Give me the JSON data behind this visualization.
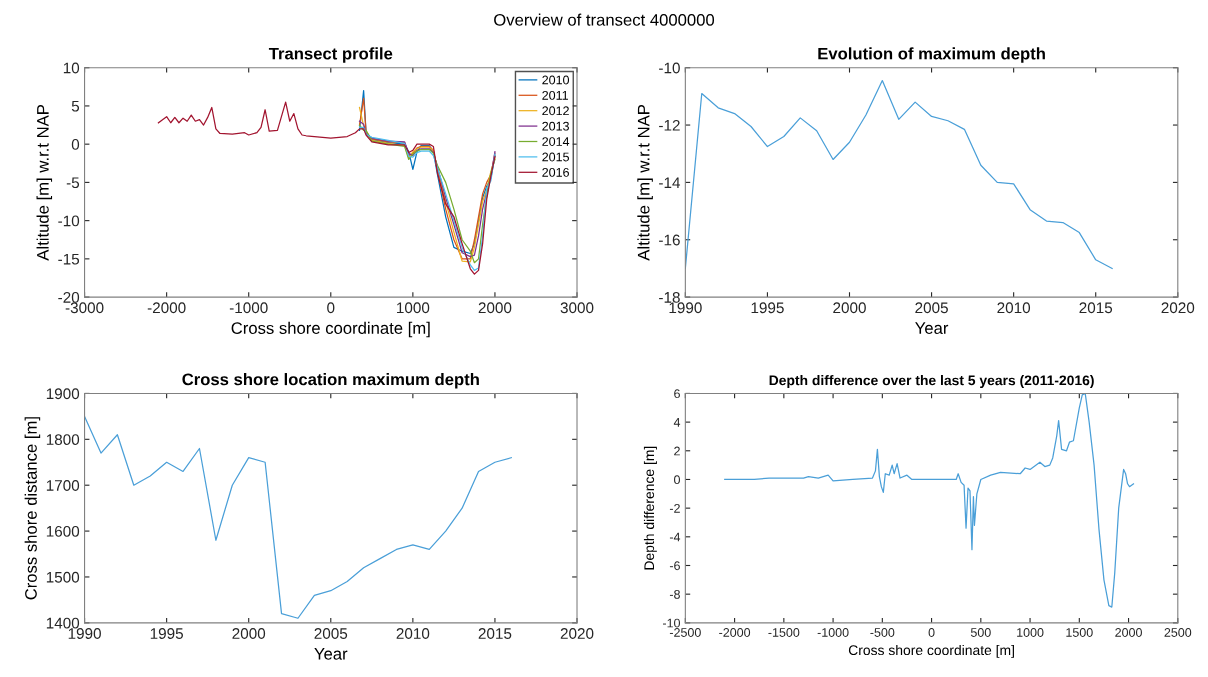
{
  "chart_data": [
    {
      "type": "line",
      "title": "Transect profile",
      "xlabel": "Cross shore coordinate [m]",
      "ylabel": "Altitude [m] w.r.t NAP",
      "annotations": [
        "Overview of transect 4000000"
      ],
      "xlim": [
        -3000,
        3000
      ],
      "xticks": [
        -3000,
        -2000,
        -1000,
        0,
        1000,
        2000,
        3000
      ],
      "ylim": [
        -20,
        10
      ],
      "yticks": [
        -20,
        -15,
        -10,
        -5,
        0,
        5,
        10
      ],
      "grid": false,
      "legend": "top right",
      "x": [
        -2100,
        -2050,
        -2000,
        -1950,
        -1900,
        -1850,
        -1800,
        -1750,
        -1700,
        -1650,
        -1600,
        -1550,
        -1500,
        -1450,
        -1400,
        -1350,
        -1200,
        -1050,
        -1000,
        -900,
        -850,
        -800,
        -750,
        -650,
        -550,
        -500,
        -450,
        -400,
        -350,
        -300,
        -200,
        0,
        200,
        300,
        350,
        400,
        430,
        500,
        700,
        900,
        950,
        1000,
        1050,
        1100,
        1200,
        1250,
        1300,
        1400,
        1500,
        1600,
        1700,
        1750,
        1800,
        1850,
        1900,
        1950,
        2000
      ],
      "series": [
        {
          "name": "2010",
          "color": "#0072bd",
          "values": [
            null,
            null,
            null,
            null,
            null,
            null,
            null,
            null,
            null,
            null,
            null,
            null,
            null,
            null,
            null,
            null,
            null,
            null,
            null,
            null,
            null,
            null,
            null,
            null,
            null,
            null,
            null,
            null,
            null,
            null,
            null,
            null,
            null,
            null,
            1.8,
            7.0,
            1.5,
            0.6,
            0.2,
            0.0,
            -1.0,
            -3.3,
            -1.0,
            -0.2,
            -0.2,
            -1.0,
            -4.0,
            -9.5,
            -13.5,
            -14.0,
            -14.3,
            -13.0,
            -10.0,
            -7.0,
            -5.5,
            -4.5,
            -1.5
          ]
        },
        {
          "name": "2011",
          "color": "#d95319",
          "values": [
            null,
            null,
            null,
            null,
            null,
            null,
            null,
            null,
            null,
            null,
            null,
            null,
            null,
            null,
            null,
            null,
            null,
            null,
            null,
            null,
            null,
            null,
            null,
            null,
            null,
            null,
            null,
            null,
            null,
            null,
            null,
            null,
            null,
            null,
            2.5,
            6.0,
            1.6,
            0.7,
            0.3,
            0.2,
            -1.5,
            -1.2,
            -0.5,
            -0.3,
            -0.3,
            -0.8,
            -3.5,
            -8.5,
            -12.5,
            -15.0,
            -15.0,
            -12.5,
            -9.5,
            -6.5,
            -5.0,
            -4.0,
            -1.2
          ]
        },
        {
          "name": "2012",
          "color": "#edb120",
          "values": [
            null,
            null,
            null,
            null,
            null,
            null,
            null,
            null,
            null,
            null,
            null,
            null,
            null,
            null,
            null,
            null,
            null,
            null,
            null,
            null,
            null,
            null,
            null,
            null,
            null,
            null,
            null,
            null,
            null,
            null,
            null,
            null,
            null,
            null,
            4.8,
            2.4,
            1.7,
            0.5,
            0.1,
            -0.2,
            -1.8,
            -1.0,
            -0.6,
            -0.4,
            -0.4,
            -0.9,
            -3.2,
            -7.5,
            -11.5,
            -15.3,
            -15.4,
            -13.5,
            -10.5,
            -7.5,
            -6.0,
            -3.6,
            -1.8
          ]
        },
        {
          "name": "2013",
          "color": "#7e2f8e",
          "values": [
            null,
            null,
            null,
            null,
            null,
            null,
            null,
            null,
            null,
            null,
            null,
            null,
            null,
            null,
            null,
            null,
            null,
            null,
            null,
            null,
            null,
            null,
            null,
            null,
            null,
            null,
            null,
            null,
            null,
            null,
            null,
            null,
            null,
            null,
            3.0,
            2.6,
            1.4,
            0.8,
            0.4,
            0.3,
            -1.2,
            -1.5,
            -0.8,
            -0.6,
            -0.6,
            -1.1,
            -3.0,
            -7.0,
            -10.5,
            -14.2,
            -14.7,
            -14.5,
            -12.0,
            -8.5,
            -6.3,
            -4.3,
            -1.0
          ]
        },
        {
          "name": "2014",
          "color": "#77ac30",
          "values": [
            null,
            null,
            null,
            null,
            null,
            null,
            null,
            null,
            null,
            null,
            null,
            null,
            null,
            null,
            null,
            null,
            null,
            null,
            null,
            null,
            null,
            null,
            null,
            null,
            null,
            null,
            null,
            null,
            null,
            null,
            null,
            null,
            null,
            null,
            2.5,
            1.8,
            1.8,
            0.4,
            0.0,
            -0.3,
            -2.0,
            -1.3,
            -0.9,
            -0.7,
            -0.7,
            -1.2,
            -2.8,
            -5.0,
            -8.5,
            -12.5,
            -14.0,
            -15.5,
            -15.0,
            -10.5,
            -6.8,
            -3.8,
            -2.0
          ]
        },
        {
          "name": "2015",
          "color": "#4dbeee",
          "values": [
            null,
            null,
            null,
            null,
            null,
            null,
            null,
            null,
            null,
            null,
            null,
            null,
            null,
            null,
            null,
            null,
            null,
            null,
            null,
            null,
            null,
            null,
            null,
            null,
            null,
            null,
            null,
            null,
            null,
            null,
            null,
            null,
            null,
            null,
            2.2,
            2.2,
            1.3,
            0.9,
            0.5,
            0.1,
            -1.6,
            -1.7,
            -1.1,
            -0.9,
            -0.9,
            -1.5,
            -3.1,
            -6.5,
            -10.0,
            -13.5,
            -15.8,
            -16.5,
            -16.2,
            -12.0,
            -5.8,
            -4.8,
            -1.3
          ]
        },
        {
          "name": "2016",
          "color": "#a2142f",
          "values": [
            2.8,
            3.2,
            3.6,
            2.8,
            3.5,
            2.8,
            3.4,
            3.0,
            3.8,
            3.0,
            3.2,
            2.5,
            3.5,
            4.8,
            2.0,
            1.4,
            1.3,
            1.5,
            1.2,
            1.5,
            2.2,
            4.5,
            1.7,
            1.8,
            5.5,
            3.0,
            4.0,
            2.0,
            1.2,
            1.1,
            1.0,
            0.8,
            1.0,
            1.5,
            2.0,
            2.0,
            1.2,
            0.3,
            -0.1,
            -0.1,
            -1.1,
            -0.8,
            0.0,
            0.0,
            0.0,
            -0.3,
            -3.8,
            -7.8,
            -9.5,
            -13.0,
            -16.3,
            -17.0,
            -16.5,
            -13.0,
            -7.2,
            -4.2,
            -1.6
          ]
        }
      ]
    },
    {
      "type": "line",
      "title": "Evolution of maximum depth",
      "xlabel": "Year",
      "ylabel": "Altitude [m] w.r.t NAP",
      "xlim": [
        1990,
        2020
      ],
      "xticks": [
        1990,
        1995,
        2000,
        2005,
        2010,
        2015,
        2020
      ],
      "ylim": [
        -18,
        -10
      ],
      "yticks": [
        -18,
        -16,
        -14,
        -12,
        -10
      ],
      "grid": false,
      "x": [
        1990,
        1991,
        1992,
        1993,
        1994,
        1995,
        1996,
        1997,
        1998,
        1999,
        2000,
        2001,
        2002,
        2003,
        2004,
        2005,
        2006,
        2007,
        2008,
        2009,
        2010,
        2011,
        2012,
        2013,
        2014,
        2015,
        2016
      ],
      "series": [
        {
          "color": "#4a9fd8",
          "values": [
            -17.0,
            -10.9,
            -11.4,
            -11.6,
            -12.05,
            -12.75,
            -12.4,
            -11.75,
            -12.2,
            -13.2,
            -12.6,
            -11.65,
            -10.45,
            -11.8,
            -11.2,
            -11.7,
            -11.85,
            -12.15,
            -13.4,
            -14.0,
            -14.05,
            -14.95,
            -15.35,
            -15.4,
            -15.75,
            -16.7,
            -17.0
          ]
        }
      ]
    },
    {
      "type": "line",
      "title": "Cross shore location maximum depth",
      "xlabel": "Year",
      "ylabel": "Cross shore distance [m]",
      "xlim": [
        1990,
        2020
      ],
      "xticks": [
        1990,
        1995,
        2000,
        2005,
        2010,
        2015,
        2020
      ],
      "ylim": [
        1400,
        1900
      ],
      "yticks": [
        1400,
        1500,
        1600,
        1700,
        1800,
        1900
      ],
      "grid": false,
      "x": [
        1990,
        1991,
        1992,
        1993,
        1994,
        1995,
        1996,
        1997,
        1998,
        1999,
        2000,
        2001,
        2002,
        2003,
        2004,
        2005,
        2006,
        2007,
        2008,
        2009,
        2010,
        2011,
        2012,
        2013,
        2014,
        2015,
        2016
      ],
      "series": [
        {
          "color": "#4a9fd8",
          "values": [
            1850,
            1770,
            1810,
            1700,
            1720,
            1750,
            1730,
            1780,
            1580,
            1700,
            1760,
            1750,
            1420,
            1410,
            1460,
            1470,
            1490,
            1520,
            1540,
            1560,
            1570,
            1560,
            1600,
            1650,
            1730,
            1750,
            1760
          ]
        }
      ]
    },
    {
      "type": "line",
      "title": "Depth difference over the last 5 years (2011-2016)",
      "xlabel": "Cross shore coordinate [m]",
      "ylabel": "Depth difference [m]",
      "xlim": [
        -2500,
        2500
      ],
      "xticks": [
        -2500,
        -2000,
        -1500,
        -1000,
        -500,
        0,
        500,
        1000,
        1500,
        2000,
        2500
      ],
      "ylim": [
        -10,
        6
      ],
      "yticks": [
        -10,
        -8,
        -6,
        -4,
        -2,
        0,
        2,
        4,
        6
      ],
      "grid": false,
      "x": [
        -2100,
        -2000,
        -1800,
        -1650,
        -1300,
        -1250,
        -1150,
        -1050,
        -1000,
        -800,
        -600,
        -570,
        -550,
        -530,
        -510,
        -490,
        -470,
        -430,
        -400,
        -380,
        -350,
        -320,
        -250,
        -200,
        0,
        250,
        270,
        300,
        330,
        350,
        370,
        390,
        410,
        425,
        435,
        460,
        500,
        600,
        700,
        900,
        950,
        1000,
        1100,
        1150,
        1200,
        1230,
        1270,
        1290,
        1320,
        1370,
        1400,
        1440,
        1500,
        1530,
        1560,
        1600,
        1650,
        1700,
        1750,
        1800,
        1830,
        1860,
        1900,
        1950,
        1970,
        1990,
        2010,
        2050
      ],
      "series": [
        {
          "color": "#4a9fd8",
          "values": [
            0.0,
            0.0,
            0.0,
            0.1,
            0.1,
            0.2,
            0.1,
            0.3,
            -0.1,
            0.0,
            0.1,
            0.6,
            2.1,
            0.2,
            -0.5,
            -0.9,
            0.4,
            0.3,
            1.0,
            0.4,
            1.1,
            0.1,
            0.3,
            0.0,
            0.0,
            0.0,
            0.4,
            -0.2,
            -0.4,
            -3.4,
            -0.6,
            -0.8,
            -4.9,
            -1.2,
            -3.2,
            -1.0,
            0.0,
            0.3,
            0.5,
            0.4,
            0.8,
            0.7,
            1.2,
            0.9,
            1.0,
            1.5,
            3.0,
            4.1,
            2.1,
            2.0,
            2.6,
            2.7,
            5.0,
            5.9,
            6.0,
            4.0,
            1.0,
            -3.5,
            -7.0,
            -8.8,
            -8.9,
            -6.5,
            -2.0,
            0.7,
            0.4,
            -0.3,
            -0.5,
            -0.3
          ]
        }
      ]
    }
  ]
}
